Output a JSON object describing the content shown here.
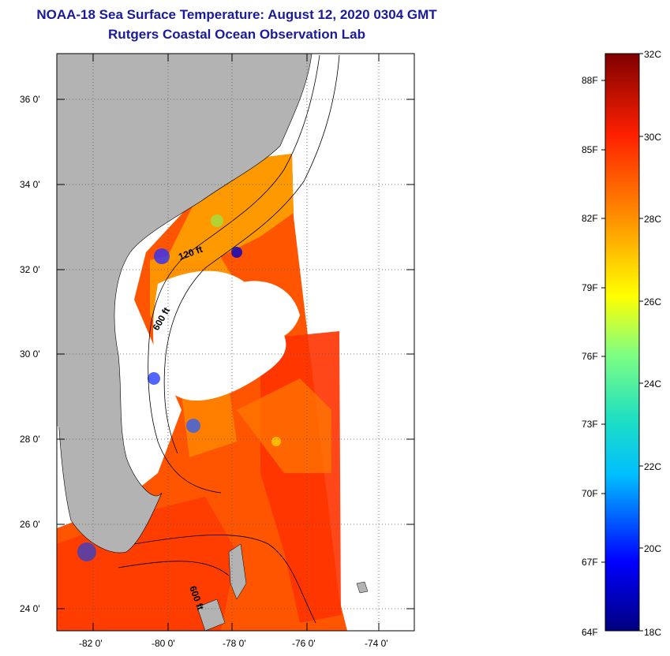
{
  "header": {
    "title_line1": "NOAA-18 Sea Surface Temperature:  August 12, 2020 0304 GMT",
    "title_line2": "Rutgers Coastal Ocean Observation Lab"
  },
  "map": {
    "lat_labels": [
      "36 0'",
      "34 0'",
      "32 0'",
      "30 0'",
      "28 0'",
      "26 0'",
      "24 0'"
    ],
    "lon_labels": [
      "-82 0'",
      "-80 0'",
      "-78 0'",
      "-76 0'",
      "-74 0'"
    ],
    "contour_labels": [
      "120 ft",
      "600 ft",
      "600 ft"
    ],
    "land_color": "#b3b3b3",
    "cloud_color": "#ffffff"
  },
  "colorbar": {
    "fahrenheit_labels": [
      "88F",
      "85F",
      "82F",
      "79F",
      "76F",
      "73F",
      "70F",
      "67F",
      "64F"
    ],
    "celsius_labels": [
      "32C",
      "30C",
      "28C",
      "26C",
      "24C",
      "22C",
      "20C",
      "18C"
    ],
    "range_c": [
      18,
      32
    ],
    "colors": [
      "#00007f",
      "#0000ff",
      "#00bfff",
      "#20e0c0",
      "#80ff80",
      "#ffff00",
      "#ff8c00",
      "#ff2000",
      "#7f0000"
    ]
  }
}
